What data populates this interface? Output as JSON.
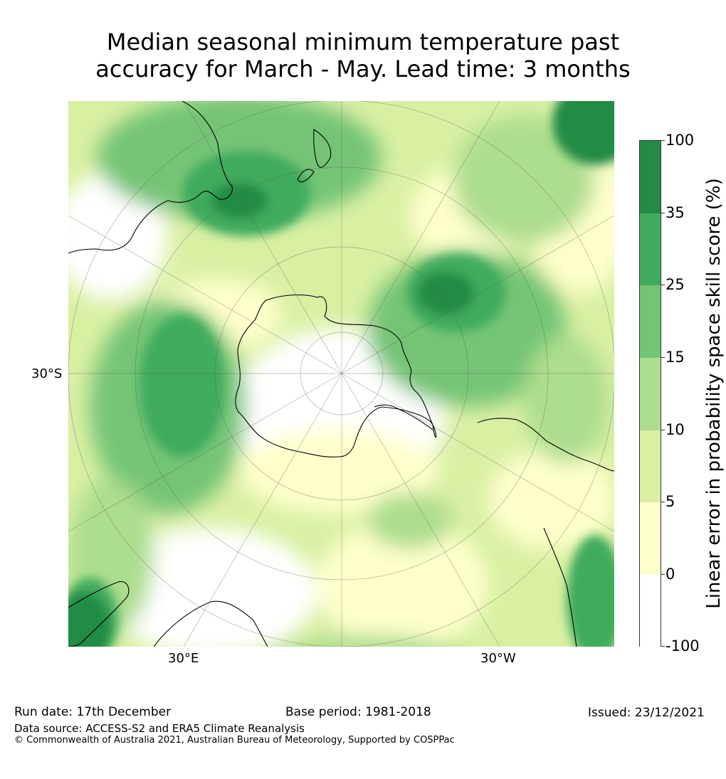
{
  "title": {
    "line1": "Median seasonal minimum temperature past",
    "line2": "accuracy for March - May. Lead time: 3 months"
  },
  "map": {
    "projection": "south-polar-stereographic",
    "lat_label": "30°S",
    "lon_labels": [
      "30°E",
      "30°W"
    ]
  },
  "colorbar": {
    "title": "Linear error in probability space skill score (%)",
    "ticks": [
      "100",
      "35",
      "25",
      "15",
      "10",
      "5",
      "0",
      "-100"
    ],
    "levels": [
      {
        "range": "35 to 100",
        "color": "#238b45"
      },
      {
        "range": "25 to 35",
        "color": "#41ab5d"
      },
      {
        "range": "15 to 25",
        "color": "#74c476"
      },
      {
        "range": "10 to 15",
        "color": "#addd8e"
      },
      {
        "range": "5 to 10",
        "color": "#d9f0a3"
      },
      {
        "range": "0 to 5",
        "color": "#ffffcc"
      },
      {
        "range": "-100 to 0",
        "color": "#ffffff"
      }
    ]
  },
  "footer": {
    "run_date": "Run date: 17th December",
    "base_period": "Base period: 1981-2018",
    "issued": "Issued: 23/12/2021",
    "data_source": "Data source: ACCESS-S2 and ERA5 Climate Reanalysis",
    "copyright": "© Commonwealth of Australia 2021, Australian Bureau of Meteorology, Supported by COSPPac"
  }
}
